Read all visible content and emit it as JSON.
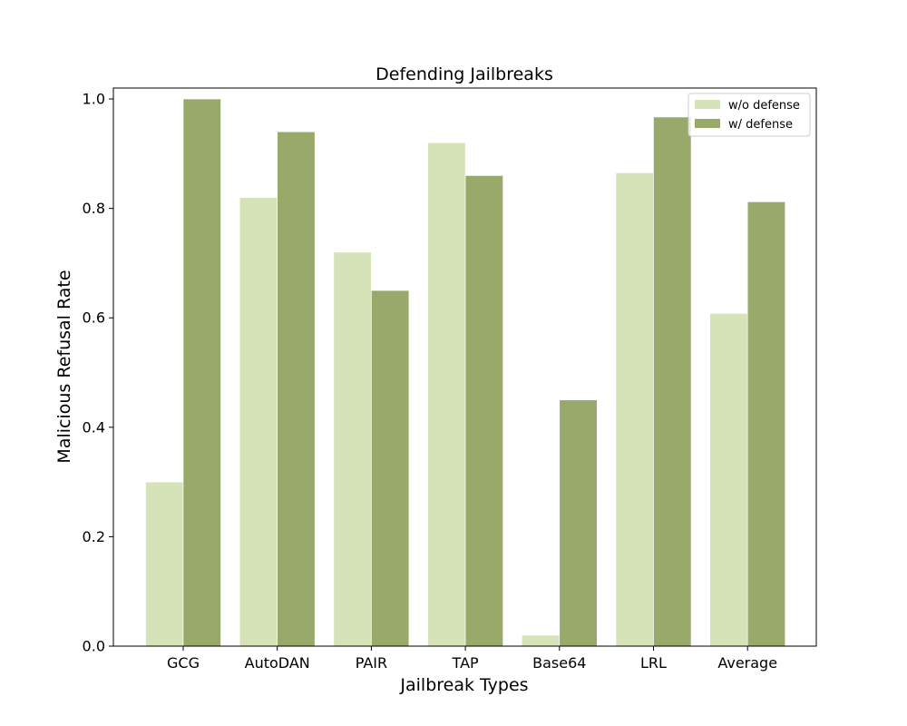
{
  "chart_data": {
    "type": "bar",
    "title": "Defending Jailbreaks",
    "xlabel": "Jailbreak Types",
    "ylabel": "Malicious Refusal Rate",
    "categories": [
      "GCG",
      "AutoDAN",
      "PAIR",
      "TAP",
      "Base64",
      "LRL",
      "Average"
    ],
    "series": [
      {
        "name": "w/o defense",
        "color": "#d6e3b8",
        "values": [
          0.3,
          0.82,
          0.72,
          0.92,
          0.02,
          0.865,
          0.608
        ]
      },
      {
        "name": "w/ defense",
        "color": "#98a96a",
        "values": [
          1.0,
          0.94,
          0.65,
          0.86,
          0.45,
          0.967,
          0.812
        ]
      }
    ],
    "ylim": [
      0,
      1.02
    ],
    "yticks": [
      "0.0",
      "0.2",
      "0.4",
      "0.6",
      "0.8",
      "1.0"
    ],
    "grid": false,
    "legend_position": "top-right"
  }
}
